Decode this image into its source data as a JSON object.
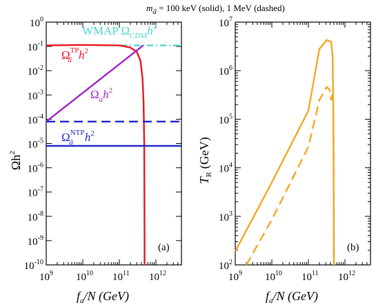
{
  "figure": {
    "super_title": {
      "prefix": "m",
      "sub": "ã",
      "rest": " = 100 keV (solid), 1 MeV (dashed)"
    }
  },
  "chart_data": [
    {
      "panel_label": "(a)",
      "type": "line",
      "x_scale": "log",
      "y_scale": "log",
      "xlim": [
        1000000000.0,
        5000000000000.0
      ],
      "ylim": [
        1e-10,
        1
      ],
      "xlabel": {
        "main": "f",
        "sub": "a",
        "rest": "/N (GeV)"
      },
      "ylabel": {
        "main": "Ωh",
        "sup": "2"
      },
      "x_ticks": [
        {
          "base": "10",
          "exp": "9",
          "value": 1000000000.0
        },
        {
          "base": "10",
          "exp": "10",
          "value": 10000000000.0
        },
        {
          "base": "10",
          "exp": "11",
          "value": 100000000000.0
        },
        {
          "base": "10",
          "exp": "12",
          "value": 1000000000000.0
        }
      ],
      "y_ticks": [
        {
          "base": "10",
          "exp": "0",
          "value": 1
        },
        {
          "base": "10",
          "exp": "-1",
          "value": 0.1
        },
        {
          "base": "10",
          "exp": "-2",
          "value": 0.01
        },
        {
          "base": "10",
          "exp": "-3",
          "value": 0.001
        },
        {
          "base": "10",
          "exp": "-4",
          "value": 0.0001
        },
        {
          "base": "10",
          "exp": "-5",
          "value": 1e-05
        },
        {
          "base": "10",
          "exp": "-6",
          "value": 1e-06
        },
        {
          "base": "10",
          "exp": "-7",
          "value": 1e-07
        },
        {
          "base": "10",
          "exp": "-8",
          "value": 1e-08
        },
        {
          "base": "10",
          "exp": "-9",
          "value": 1e-09
        },
        {
          "base": "10",
          "exp": "-10",
          "value": 1e-10
        }
      ],
      "series": [
        {
          "color": "#4dd4cf",
          "style": "dashdot",
          "x": [
            110000000000.0,
            5000000000000.0
          ],
          "y": [
            0.11,
            0.11
          ]
        },
        {
          "color": "#e8141e",
          "style": "solid",
          "x": [
            1000000000.0,
            10000000000.0,
            100000000000.0,
            200000000000.0,
            300000000000.0,
            380000000000.0,
            430000000000.0,
            460000000000.0,
            480000000000.0,
            485000000000.0,
            490000000000.0,
            490000000000.0
          ],
          "y": [
            0.11,
            0.115,
            0.11,
            0.09,
            0.06,
            0.025,
            0.005,
            0.0005,
            1e-05,
            1e-07,
            1e-09,
            1e-10
          ]
        },
        {
          "color": "#a020c8",
          "style": "solid",
          "x": [
            1000000000.0,
            450000000000.0
          ],
          "y": [
            8e-05,
            0.11
          ]
        },
        {
          "color": "#1a22c8",
          "style": "dashed",
          "x": [
            1000000000.0,
            5000000000000.0
          ],
          "y": [
            8e-05,
            8e-05
          ]
        },
        {
          "color": "#1a22c8",
          "style": "solid",
          "x": [
            1000000000.0,
            5000000000000.0
          ],
          "y": [
            8e-06,
            8e-06
          ]
        }
      ],
      "annotations": [
        {
          "color": "#4dd4cf",
          "text": "WMAP Ω",
          "sub": "CDM",
          "tail": "h",
          "tail_sup": "2"
        },
        {
          "color": "#e8141e",
          "text": "Ω",
          "sub": "ã",
          "sup": "TP",
          "tail": "h",
          "tail_sup": "2"
        },
        {
          "color": "#a020c8",
          "text": "Ω",
          "sub": "a",
          "tail": "h",
          "tail_sup": "2"
        },
        {
          "color": "#1a22c8",
          "text": "Ω",
          "sub": "ã",
          "sup": "NTP",
          "tail": "h",
          "tail_sup": "2"
        }
      ]
    },
    {
      "panel_label": "(b)",
      "type": "line",
      "x_scale": "log",
      "y_scale": "log",
      "xlim": [
        1000000000.0,
        5000000000000.0
      ],
      "ylim": [
        100,
        10000000.0
      ],
      "xlabel": {
        "main": "f",
        "sub": "a",
        "rest": "/N (GeV)"
      },
      "ylabel": {
        "main": "T",
        "sub": "R",
        "rest": " (GeV)"
      },
      "x_ticks": [
        {
          "base": "10",
          "exp": "9",
          "value": 1000000000.0
        },
        {
          "base": "10",
          "exp": "10",
          "value": 10000000000.0
        },
        {
          "base": "10",
          "exp": "11",
          "value": 100000000000.0
        },
        {
          "base": "10",
          "exp": "12",
          "value": 1000000000000.0
        }
      ],
      "y_ticks": [
        {
          "base": "10",
          "exp": "2",
          "value": 100
        },
        {
          "base": "10",
          "exp": "3",
          "value": 1000
        },
        {
          "base": "10",
          "exp": "4",
          "value": 10000.0
        },
        {
          "base": "10",
          "exp": "5",
          "value": 100000.0
        },
        {
          "base": "10",
          "exp": "6",
          "value": 1000000.0
        },
        {
          "base": "10",
          "exp": "7",
          "value": 10000000.0
        }
      ],
      "series": [
        {
          "color": "#f5a623",
          "style": "solid",
          "x": [
            1000000000.0,
            10000000000.0,
            100000000000.0,
            200000000000.0,
            320000000000.0,
            420000000000.0,
            460000000000.0,
            480000000000.0,
            490000000000.0,
            500000000000.0
          ],
          "y": [
            190,
            5000,
            150000.0,
            2800000.0,
            4300000.0,
            3900000.0,
            2000000.0,
            200000.0,
            10000.0,
            100
          ]
        },
        {
          "color": "#f5a623",
          "style": "dashed",
          "x": [
            2000000000.0,
            10000000000.0,
            100000000000.0,
            200000000000.0,
            320000000000.0,
            380000000000.0,
            420000000000.0,
            450000000000.0,
            460000000000.0,
            475000000000.0,
            485000000000.0,
            495000000000.0,
            500000000000.0
          ],
          "y": [
            100,
            850,
            27000.0,
            250000.0,
            460000.0,
            410000.0,
            250000.0,
            320000.0,
            350000.0,
            280000.0,
            100000.0,
            10000.0,
            100
          ]
        }
      ]
    }
  ]
}
